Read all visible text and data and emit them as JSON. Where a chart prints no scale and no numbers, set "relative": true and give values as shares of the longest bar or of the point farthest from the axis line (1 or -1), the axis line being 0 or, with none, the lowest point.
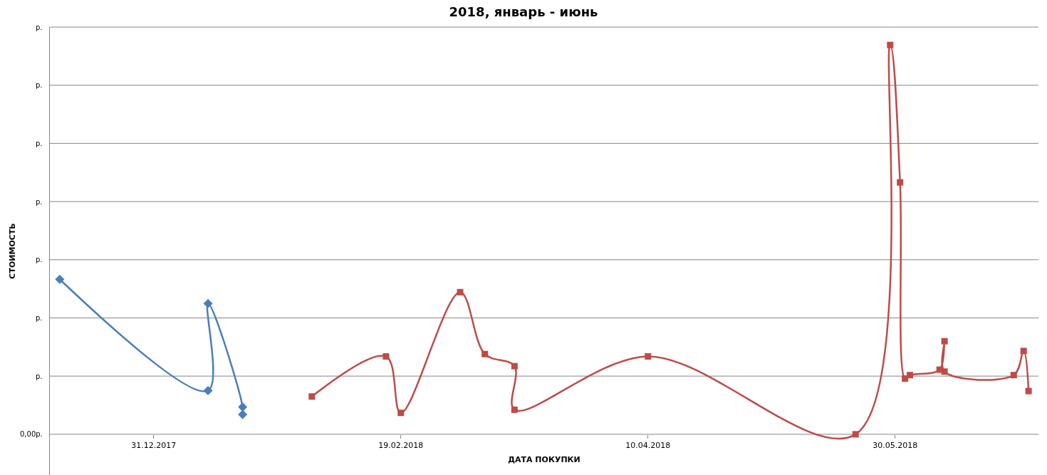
{
  "chart_data": {
    "type": "line",
    "title": "2018, январь - июнь",
    "xlabel": "ДАТА ПОКУПКИ",
    "ylabel": "СТОИМОСТЬ",
    "relative": true,
    "grid": "y",
    "line_style": "solid",
    "annotations": [
      "0,00р.",
      "р.",
      "р.",
      "р.",
      "р.",
      "р.",
      "р.",
      "р."
    ],
    "xlim": [
      "2017-12-10",
      "2018-06-28"
    ],
    "xticks": [
      {
        "value": "2017-12-31",
        "label": "31.12.2017"
      },
      {
        "value": "2018-02-19",
        "label": "19.02.2018"
      },
      {
        "value": "2018-04-10",
        "label": "10.04.2018"
      },
      {
        "value": "2018-05-30",
        "label": "30.05.2018"
      }
    ],
    "series": [
      {
        "color": "#4a7ebb",
        "marker": "diamond",
        "x": [
          "2017-12-12",
          "2018-01-11",
          "2018-01-11",
          "2018-01-18",
          "2018-01-18"
        ],
        "values": [
          0.398,
          0.112,
          0.336,
          0.07,
          0.051
        ]
      },
      {
        "color": "#be4b48",
        "marker": "square",
        "x": [
          "2018-02-01",
          "2018-02-16",
          "2018-02-19",
          "2018-03-03",
          "2018-03-08",
          "2018-03-14",
          "2018-03-14",
          "2018-04-10",
          "2018-05-22",
          "2018-05-29",
          "2018-05-31",
          "2018-06-01",
          "2018-06-02",
          "2018-06-08",
          "2018-06-09",
          "2018-06-09",
          "2018-06-23",
          "2018-06-25",
          "2018-06-26"
        ],
        "values": [
          0.097,
          0.2,
          0.055,
          0.365,
          0.206,
          0.175,
          0.063,
          0.2,
          0,
          1,
          0.647,
          0.143,
          0.152,
          0.166,
          0.239,
          0.161,
          0.152,
          0.214,
          0.111
        ]
      }
    ]
  }
}
